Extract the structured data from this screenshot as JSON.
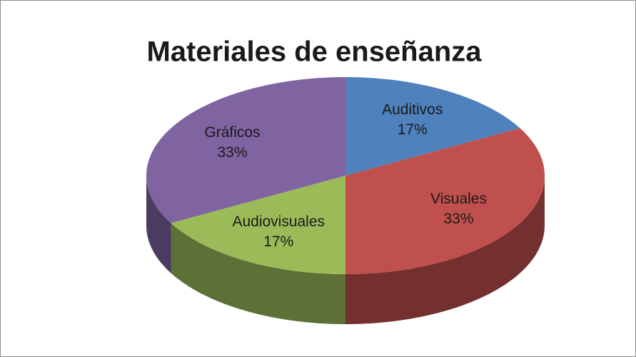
{
  "chart_data": {
    "type": "pie",
    "title": "Materiales de enseñanza",
    "categories": [
      "Auditivos",
      "Visuales",
      "Audiovisuales",
      "Gráficos"
    ],
    "values": [
      17,
      33,
      17,
      33
    ],
    "value_labels": [
      "17%",
      "33%",
      "17%",
      "33%"
    ],
    "colors": [
      "#4f81bd",
      "#c0504d",
      "#9bbb59",
      "#8064a2"
    ]
  }
}
